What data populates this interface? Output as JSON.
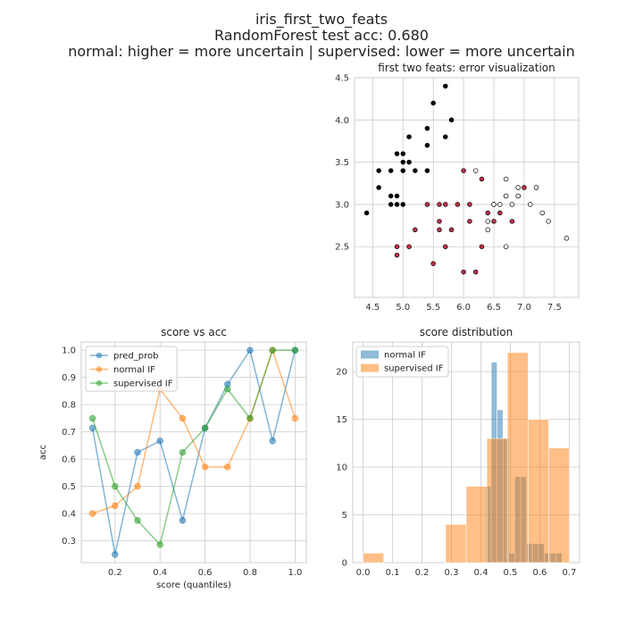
{
  "figure": {
    "title_lines": [
      "iris_first_two_feats",
      "RandomForest test acc: 0.680",
      "normal: higher = more uncertain | supervised: lower = more uncertain"
    ]
  },
  "colors": {
    "blue": "#1f77b4",
    "orange": "#ff7f0e",
    "green": "#2ca02c",
    "correct_black": "#000000",
    "error_red": "#c0304a",
    "open_point": "#ffffff",
    "grid": "#cccccc"
  },
  "chart_data": [
    {
      "type": "scatter",
      "title": "first two feats: error visualization",
      "xlim": [
        4.2,
        7.9
      ],
      "ylim": [
        1.9,
        4.5
      ],
      "xticks": [
        "4.5",
        "5.0",
        "5.5",
        "6.0",
        "6.5",
        "7.0",
        "7.5"
      ],
      "yticks": [
        "2.5",
        "3.0",
        "3.5",
        "4.0",
        "4.5"
      ],
      "grid": true,
      "groups": [
        {
          "kind": "black",
          "points": [
            [
              4.4,
              2.9
            ],
            [
              4.6,
              3.2
            ],
            [
              4.6,
              3.4
            ],
            [
              4.8,
              3.4
            ],
            [
              4.8,
              3.1
            ],
            [
              4.8,
              3.0
            ],
            [
              4.9,
              3.6
            ],
            [
              4.9,
              3.1
            ],
            [
              4.9,
              3.0
            ],
            [
              5.0,
              3.6
            ],
            [
              5.0,
              3.5
            ],
            [
              5.0,
              3.4
            ],
            [
              5.0,
              3.0
            ],
            [
              5.1,
              3.8
            ],
            [
              5.1,
              3.5
            ],
            [
              5.2,
              3.4
            ],
            [
              5.4,
              3.9
            ],
            [
              5.4,
              3.7
            ],
            [
              5.4,
              3.4
            ],
            [
              5.5,
              4.2
            ],
            [
              5.7,
              4.4
            ],
            [
              5.7,
              3.8
            ],
            [
              5.8,
              4.0
            ]
          ]
        },
        {
          "kind": "red",
          "points": [
            [
              4.9,
              2.5
            ],
            [
              4.9,
              2.4
            ],
            [
              5.1,
              2.5
            ],
            [
              5.2,
              2.7
            ],
            [
              5.4,
              3.0
            ],
            [
              5.5,
              2.3
            ],
            [
              5.6,
              3.0
            ],
            [
              5.6,
              2.8
            ],
            [
              5.6,
              2.7
            ],
            [
              5.7,
              3.0
            ],
            [
              5.7,
              2.5
            ],
            [
              5.8,
              2.7
            ],
            [
              5.9,
              3.0
            ],
            [
              6.0,
              3.4
            ],
            [
              6.0,
              2.2
            ],
            [
              6.1,
              3.0
            ],
            [
              6.1,
              2.8
            ],
            [
              6.2,
              2.2
            ],
            [
              6.3,
              3.3
            ],
            [
              6.3,
              2.5
            ],
            [
              6.4,
              2.9
            ],
            [
              6.5,
              3.0
            ],
            [
              6.5,
              2.8
            ],
            [
              6.6,
              2.9
            ],
            [
              6.7,
              3.1
            ],
            [
              6.8,
              2.8
            ],
            [
              6.9,
              3.1
            ],
            [
              7.0,
              3.2
            ]
          ]
        },
        {
          "kind": "open",
          "points": [
            [
              6.2,
              3.4
            ],
            [
              6.4,
              2.8
            ],
            [
              6.4,
              2.7
            ],
            [
              6.5,
              3.0
            ],
            [
              6.6,
              3.0
            ],
            [
              6.7,
              3.3
            ],
            [
              6.7,
              3.1
            ],
            [
              6.7,
              2.5
            ],
            [
              6.8,
              3.0
            ],
            [
              6.9,
              3.2
            ],
            [
              6.9,
              3.1
            ],
            [
              7.1,
              3.0
            ],
            [
              7.2,
              3.2
            ],
            [
              7.3,
              2.9
            ],
            [
              7.4,
              2.8
            ],
            [
              7.7,
              2.6
            ]
          ]
        }
      ]
    },
    {
      "type": "line",
      "title": "score vs acc",
      "xlabel": "score (quantiles)",
      "ylabel": "acc",
      "xlim": [
        0.05,
        1.05
      ],
      "ylim": [
        0.22,
        1.03
      ],
      "xticks": [
        "0.2",
        "0.4",
        "0.6",
        "0.8",
        "1.0"
      ],
      "yticks": [
        "0.3",
        "0.4",
        "0.5",
        "0.6",
        "0.7",
        "0.8",
        "0.9",
        "1.0"
      ],
      "grid": true,
      "legend": "top-left",
      "x": [
        0.1,
        0.2,
        0.3,
        0.4,
        0.5,
        0.6,
        0.7,
        0.8,
        0.9,
        1.0
      ],
      "series": [
        {
          "name": "pred_prob",
          "color": "#1f77b4",
          "values": [
            0.714,
            0.25,
            0.625,
            0.667,
            0.375,
            0.714,
            0.875,
            1.0,
            0.667,
            1.0
          ]
        },
        {
          "name": "normal IF",
          "color": "#ff7f0e",
          "values": [
            0.4,
            0.429,
            0.5,
            0.857,
            0.75,
            0.571,
            0.571,
            0.75,
            1.0,
            0.75
          ]
        },
        {
          "name": "supervised IF",
          "color": "#2ca02c",
          "values": [
            0.75,
            0.5,
            0.375,
            0.286,
            0.625,
            0.714,
            0.857,
            0.75,
            1.0,
            1.0
          ]
        }
      ]
    },
    {
      "type": "bar",
      "title": "score distribution",
      "xlim": [
        -0.035,
        0.735
      ],
      "ylim": [
        0,
        23.1
      ],
      "xticks": [
        "0.0",
        "0.1",
        "0.2",
        "0.3",
        "0.4",
        "0.5",
        "0.6",
        "0.7"
      ],
      "yticks": [
        "0",
        "5",
        "10",
        "15",
        "20"
      ],
      "grid": true,
      "legend": "top-left",
      "series": [
        {
          "name": "normal IF",
          "color": "#1f77b4",
          "bins": [
            [
              0.415,
              0.435,
              8
            ],
            [
              0.435,
              0.455,
              21
            ],
            [
              0.455,
              0.475,
              16
            ],
            [
              0.475,
              0.495,
              13
            ],
            [
              0.495,
              0.515,
              1
            ],
            [
              0.515,
              0.535,
              9
            ],
            [
              0.535,
              0.555,
              9
            ],
            [
              0.555,
              0.575,
              2
            ],
            [
              0.575,
              0.595,
              2
            ],
            [
              0.595,
              0.615,
              2
            ],
            [
              0.615,
              0.635,
              1
            ],
            [
              0.635,
              0.655,
              1
            ],
            [
              0.655,
              0.675,
              1
            ]
          ]
        },
        {
          "name": "supervised IF",
          "color": "#ff7f0e",
          "bins": [
            [
              0.0,
              0.07,
              1
            ],
            [
              0.28,
              0.35,
              4
            ],
            [
              0.35,
              0.42,
              8
            ],
            [
              0.42,
              0.49,
              13
            ],
            [
              0.49,
              0.56,
              22
            ],
            [
              0.56,
              0.63,
              15
            ],
            [
              0.63,
              0.7,
              12
            ]
          ]
        }
      ]
    }
  ]
}
